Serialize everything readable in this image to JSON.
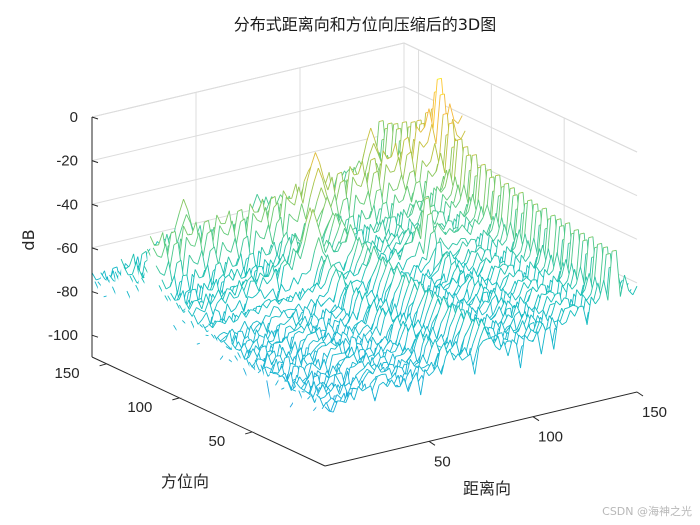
{
  "chart_data": {
    "type": "mesh",
    "title": "分布式距离向和方位向压缩后的3D图",
    "xlabel": "距离向",
    "ylabel": "方位向",
    "zlabel": "dB",
    "xlim": [
      0,
      150
    ],
    "ylim": [
      0,
      160
    ],
    "zlim": [
      -110,
      0
    ],
    "xticks": [
      "50",
      "100",
      "150"
    ],
    "yticks": [
      "50",
      "100",
      "150"
    ],
    "zticks": [
      "0",
      "-20",
      "-40",
      "-60",
      "-80",
      "-100"
    ],
    "colormap": "parula",
    "grid": true,
    "peak_db": 0,
    "noise_floor_db": -90
  },
  "watermark": "CSDN @海神之光"
}
